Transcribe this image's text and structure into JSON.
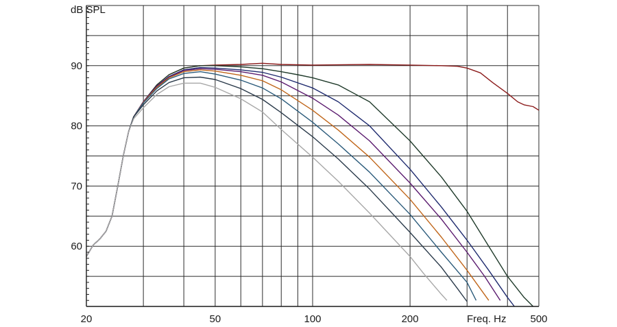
{
  "chart_data": {
    "type": "line",
    "xlabel": "Freq. Hz",
    "ylabel": "dB SPL",
    "x_scale": "log",
    "xlim": [
      20,
      500
    ],
    "ylim": [
      50,
      100
    ],
    "grid": true,
    "x_tick_labels": [
      {
        "value": 20,
        "label": "20"
      },
      {
        "value": 50,
        "label": "50"
      },
      {
        "value": 100,
        "label": "100"
      },
      {
        "value": 200,
        "label": "200"
      },
      {
        "value": 500,
        "label": "500"
      }
    ],
    "y_tick_labels": [
      {
        "value": 60,
        "label": "60"
      },
      {
        "value": 70,
        "label": "70"
      },
      {
        "value": 80,
        "label": "80"
      },
      {
        "value": 90,
        "label": "90"
      }
    ],
    "x_gridlines": [
      20,
      30,
      40,
      50,
      60,
      70,
      80,
      90,
      100,
      200,
      300,
      400,
      500
    ],
    "y_gridlines": [
      50,
      55,
      60,
      65,
      70,
      75,
      80,
      85,
      90,
      95,
      100
    ],
    "series": [
      {
        "color": "#8b1a1a",
        "points": [
          [
            20,
            58.3
          ],
          [
            21,
            60.2
          ],
          [
            22,
            61.2
          ],
          [
            23,
            62.5
          ],
          [
            24,
            65
          ],
          [
            25,
            70
          ],
          [
            26,
            75
          ],
          [
            27,
            79
          ],
          [
            28,
            81.5
          ],
          [
            30,
            84
          ],
          [
            33,
            86.8
          ],
          [
            36,
            88.5
          ],
          [
            40,
            89.6
          ],
          [
            45,
            90
          ],
          [
            50,
            90.1
          ],
          [
            60,
            90.2
          ],
          [
            70,
            90.4
          ],
          [
            80,
            90.2
          ],
          [
            100,
            90.1
          ],
          [
            150,
            90.2
          ],
          [
            200,
            90.1
          ],
          [
            250,
            90
          ],
          [
            280,
            89.9
          ],
          [
            300,
            89.6
          ],
          [
            330,
            88.8
          ],
          [
            360,
            87.2
          ],
          [
            400,
            85.4
          ],
          [
            430,
            84
          ],
          [
            450,
            83.5
          ],
          [
            480,
            83.2
          ],
          [
            500,
            82.6
          ]
        ]
      },
      {
        "color": "#1f3a2a",
        "points": [
          [
            20,
            58.3
          ],
          [
            21,
            60.2
          ],
          [
            22,
            61.2
          ],
          [
            23,
            62.5
          ],
          [
            24,
            65
          ],
          [
            25,
            70
          ],
          [
            26,
            75
          ],
          [
            27,
            79
          ],
          [
            28,
            81.5
          ],
          [
            30,
            84
          ],
          [
            33,
            86.8
          ],
          [
            36,
            88.5
          ],
          [
            40,
            89.6
          ],
          [
            45,
            90
          ],
          [
            50,
            90
          ],
          [
            60,
            89.8
          ],
          [
            70,
            89.5
          ],
          [
            80,
            89
          ],
          [
            90,
            88.5
          ],
          [
            100,
            88
          ],
          [
            120,
            86.8
          ],
          [
            150,
            84
          ],
          [
            200,
            77.5
          ],
          [
            250,
            71.5
          ],
          [
            300,
            65.8
          ],
          [
            350,
            60
          ],
          [
            400,
            55
          ],
          [
            450,
            51.5
          ],
          [
            480,
            50
          ]
        ]
      },
      {
        "color": "#1e2a6e",
        "points": [
          [
            20,
            58.3
          ],
          [
            21,
            60.2
          ],
          [
            22,
            61.2
          ],
          [
            23,
            62.5
          ],
          [
            24,
            65
          ],
          [
            25,
            70
          ],
          [
            26,
            75
          ],
          [
            27,
            79
          ],
          [
            28,
            81.5
          ],
          [
            30,
            84
          ],
          [
            33,
            86.6
          ],
          [
            36,
            88.2
          ],
          [
            40,
            89.3
          ],
          [
            45,
            89.7
          ],
          [
            50,
            89.6
          ],
          [
            60,
            89.3
          ],
          [
            70,
            88.9
          ],
          [
            80,
            88.1
          ],
          [
            100,
            86.3
          ],
          [
            120,
            84
          ],
          [
            150,
            80
          ],
          [
            200,
            72.8
          ],
          [
            250,
            66.5
          ],
          [
            300,
            61
          ],
          [
            350,
            56
          ],
          [
            400,
            51.5
          ],
          [
            420,
            50
          ]
        ]
      },
      {
        "color": "#5a1a6e",
        "points": [
          [
            20,
            58.3
          ],
          [
            21,
            60.2
          ],
          [
            22,
            61.2
          ],
          [
            23,
            62.5
          ],
          [
            24,
            65
          ],
          [
            25,
            70
          ],
          [
            26,
            75
          ],
          [
            27,
            79
          ],
          [
            28,
            81.5
          ],
          [
            30,
            84
          ],
          [
            33,
            86.6
          ],
          [
            36,
            88.1
          ],
          [
            40,
            89.2
          ],
          [
            45,
            89.5
          ],
          [
            50,
            89.4
          ],
          [
            60,
            89
          ],
          [
            70,
            88.4
          ],
          [
            80,
            87.3
          ],
          [
            100,
            84.6
          ],
          [
            120,
            81.8
          ],
          [
            150,
            77.5
          ],
          [
            200,
            70.5
          ],
          [
            250,
            64.5
          ],
          [
            300,
            59
          ],
          [
            340,
            55
          ],
          [
            380,
            51
          ]
        ]
      },
      {
        "color": "#c0661a",
        "points": [
          [
            20,
            58.3
          ],
          [
            21,
            60.2
          ],
          [
            22,
            61.2
          ],
          [
            23,
            62.5
          ],
          [
            24,
            65
          ],
          [
            25,
            70
          ],
          [
            26,
            75
          ],
          [
            27,
            79
          ],
          [
            28,
            81.5
          ],
          [
            30,
            83.9
          ],
          [
            33,
            86.4
          ],
          [
            36,
            88
          ],
          [
            40,
            89
          ],
          [
            45,
            89.3
          ],
          [
            50,
            89.1
          ],
          [
            60,
            88.4
          ],
          [
            70,
            87.5
          ],
          [
            80,
            86
          ],
          [
            100,
            82.6
          ],
          [
            120,
            79.3
          ],
          [
            150,
            74.8
          ],
          [
            200,
            67.8
          ],
          [
            250,
            61.5
          ],
          [
            300,
            56
          ],
          [
            350,
            51
          ]
        ]
      },
      {
        "color": "#2a5a7a",
        "points": [
          [
            20,
            58.3
          ],
          [
            21,
            60.2
          ],
          [
            22,
            61.2
          ],
          [
            23,
            62.5
          ],
          [
            24,
            65
          ],
          [
            25,
            70
          ],
          [
            26,
            75
          ],
          [
            27,
            79
          ],
          [
            28,
            81.5
          ],
          [
            30,
            83.8
          ],
          [
            33,
            86.2
          ],
          [
            36,
            87.8
          ],
          [
            40,
            88.7
          ],
          [
            45,
            89
          ],
          [
            50,
            88.6
          ],
          [
            60,
            87.6
          ],
          [
            70,
            86.3
          ],
          [
            80,
            84.5
          ],
          [
            100,
            80.6
          ],
          [
            120,
            77
          ],
          [
            150,
            72.3
          ],
          [
            200,
            65.3
          ],
          [
            250,
            59
          ],
          [
            300,
            54
          ],
          [
            320,
            51
          ]
        ]
      },
      {
        "color": "#2a3a4a",
        "points": [
          [
            20,
            58.3
          ],
          [
            21,
            60.2
          ],
          [
            22,
            61.2
          ],
          [
            23,
            62.5
          ],
          [
            24,
            65
          ],
          [
            25,
            70
          ],
          [
            26,
            75
          ],
          [
            27,
            79
          ],
          [
            28,
            81.5
          ],
          [
            30,
            83.5
          ],
          [
            33,
            85.8
          ],
          [
            36,
            87.2
          ],
          [
            40,
            88
          ],
          [
            45,
            88.1
          ],
          [
            50,
            87.7
          ],
          [
            60,
            86.2
          ],
          [
            70,
            84.4
          ],
          [
            80,
            82.2
          ],
          [
            100,
            78.2
          ],
          [
            120,
            74.5
          ],
          [
            150,
            69.5
          ],
          [
            200,
            62.3
          ],
          [
            250,
            56.5
          ],
          [
            280,
            53
          ],
          [
            300,
            50.8
          ]
        ]
      },
      {
        "color": "#a8a8a8",
        "points": [
          [
            20,
            58.3
          ],
          [
            21,
            60.2
          ],
          [
            22,
            61.2
          ],
          [
            23,
            62.5
          ],
          [
            24,
            65
          ],
          [
            25,
            70
          ],
          [
            26,
            75
          ],
          [
            27,
            79
          ],
          [
            28,
            81.2
          ],
          [
            30,
            83
          ],
          [
            33,
            85.2
          ],
          [
            36,
            86.5
          ],
          [
            40,
            87.1
          ],
          [
            45,
            87.1
          ],
          [
            50,
            86.4
          ],
          [
            60,
            84.5
          ],
          [
            70,
            82.3
          ],
          [
            80,
            79.4
          ],
          [
            100,
            74.8
          ],
          [
            120,
            70.8
          ],
          [
            150,
            65.5
          ],
          [
            200,
            58.3
          ],
          [
            220,
            55.5
          ],
          [
            250,
            52
          ],
          [
            260,
            51
          ]
        ]
      }
    ]
  }
}
